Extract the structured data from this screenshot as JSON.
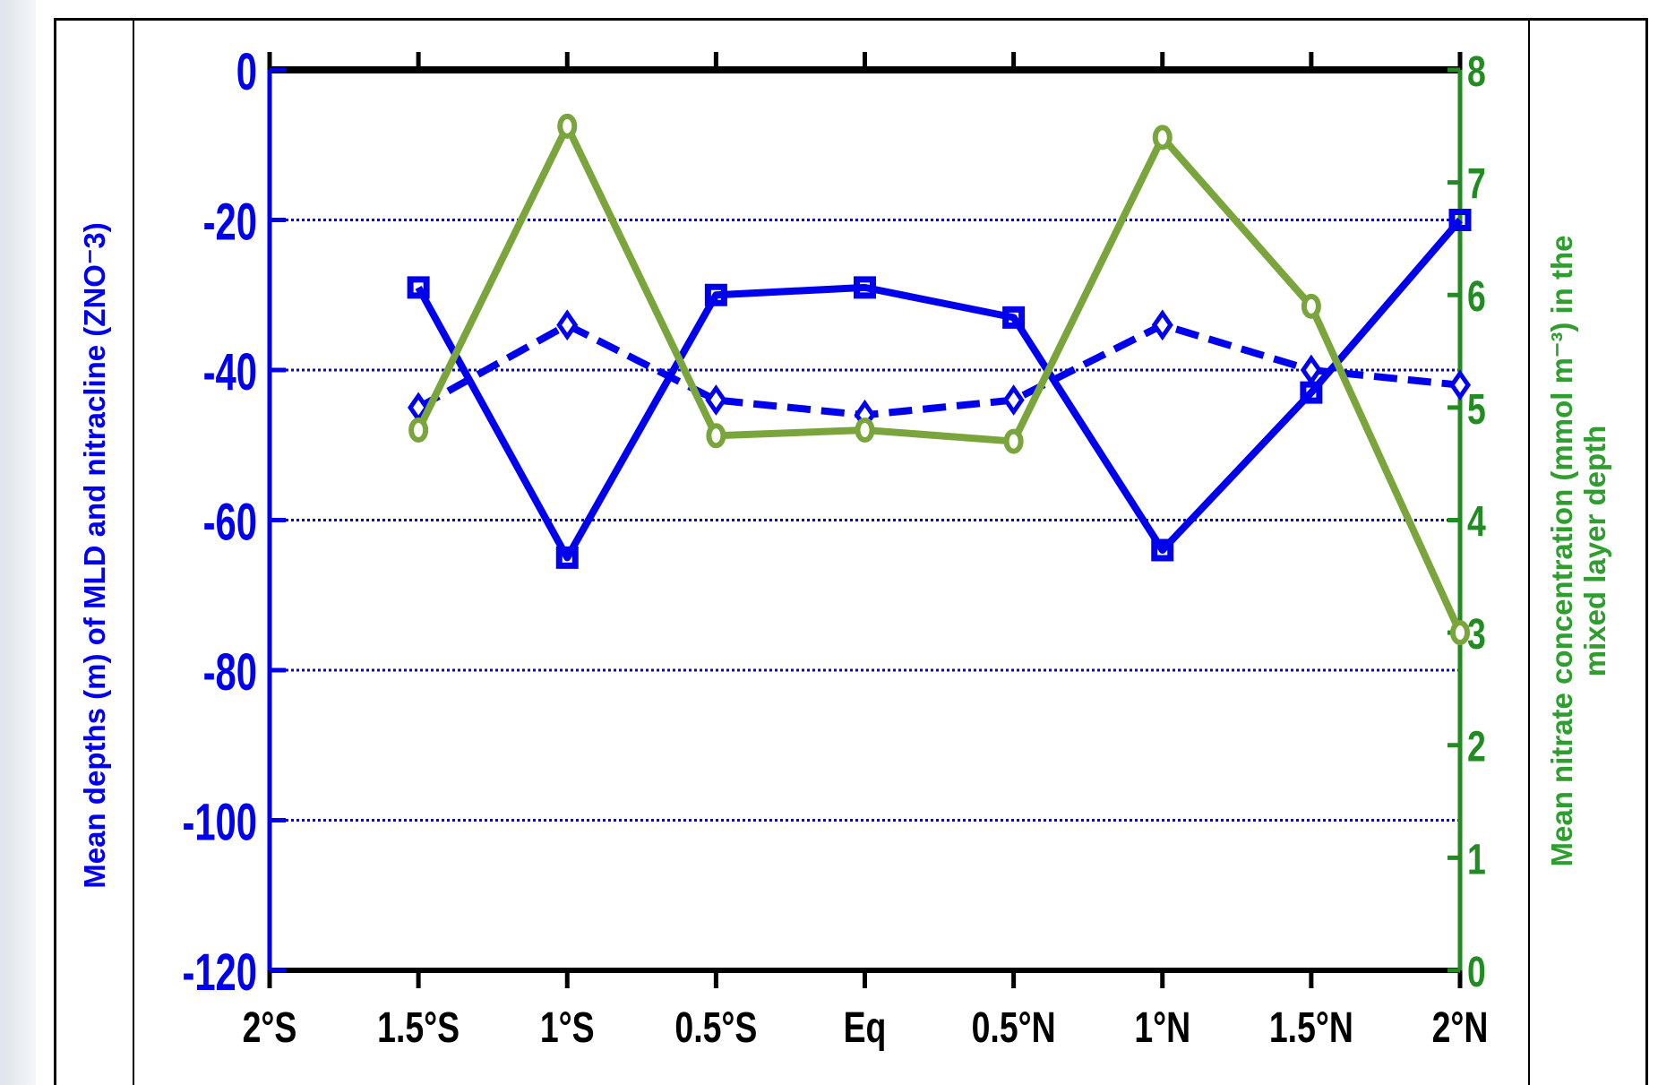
{
  "chart_data": {
    "type": "line",
    "x_categories": [
      "2°S",
      "1.5°S",
      "1°S",
      "0.5°S",
      "Eq",
      "0.5°N",
      "1°N",
      "1.5°N",
      "2°N"
    ],
    "y_left": {
      "label": "Mean depths (m) of MLD and nitracline (ZNO⁻3)",
      "ticks": [
        "0",
        "-20",
        "-40",
        "-60",
        "-80",
        "-100",
        "-120"
      ],
      "range": [
        -120,
        0
      ],
      "color": "#0000ee"
    },
    "y_right": {
      "label_line1": "Mean nitrate concentration (mmol m⁻³) in the",
      "label_line2": "mixed layer depth",
      "ticks": [
        "0",
        "1",
        "2",
        "3",
        "4",
        "5",
        "6",
        "7",
        "8"
      ],
      "range": [
        0,
        8
      ],
      "color": "#228b22"
    },
    "grid": "dotted horizontal at -20, -40, -60, -80, -100",
    "series": [
      {
        "axis": "left",
        "style": "solid",
        "marker": "square",
        "color": "#0000ee",
        "values": [
          null,
          -29,
          -65,
          -30,
          -29,
          -33,
          -64,
          -43,
          -20
        ]
      },
      {
        "axis": "left",
        "style": "dashed",
        "marker": "diamond",
        "color": "#0000ee",
        "values": [
          null,
          -45,
          -34,
          -44,
          -46,
          -44,
          -34,
          -40,
          -42
        ]
      },
      {
        "axis": "right",
        "style": "solid",
        "marker": "circle",
        "color": "#7aa53c",
        "values": [
          null,
          4.8,
          7.5,
          4.75,
          4.8,
          4.7,
          7.4,
          5.9,
          3.0
        ]
      }
    ]
  }
}
